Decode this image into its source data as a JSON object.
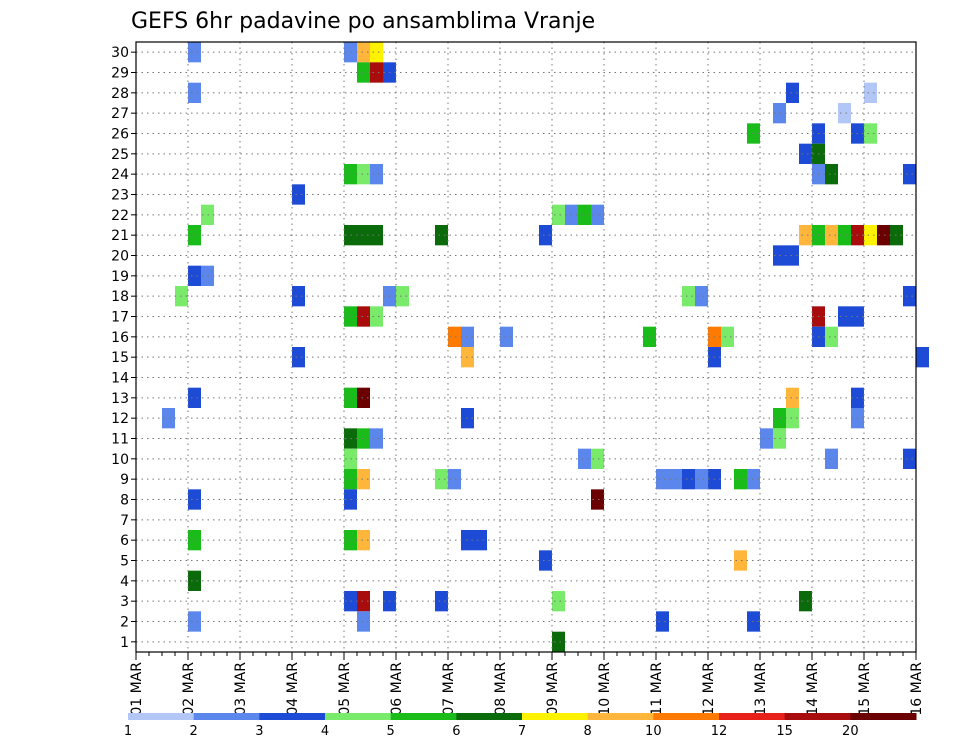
{
  "chart_data": {
    "type": "heatmap",
    "title": "GEFS 6hr padavine po ansamblima Vranje",
    "x_start": "01 MAR",
    "x_end": "16 MAR",
    "x_ticks": [
      "01 MAR",
      "02 MAR",
      "03 MAR",
      "04 MAR",
      "05 MAR",
      "06 MAR",
      "07 MAR",
      "08 MAR",
      "09 MAR",
      "10 MAR",
      "11 MAR",
      "12 MAR",
      "13 MAR",
      "14 MAR",
      "15 MAR",
      "16 MAR"
    ],
    "x_step_hours": 6,
    "y_ticks": [
      1,
      2,
      3,
      4,
      5,
      6,
      7,
      8,
      9,
      10,
      11,
      12,
      13,
      14,
      15,
      16,
      17,
      18,
      19,
      20,
      21,
      22,
      23,
      24,
      25,
      26,
      27,
      28,
      29,
      30
    ],
    "grid": "dotted",
    "legend": "bottom colorbar",
    "levels": [
      "1",
      "2",
      "3",
      "4",
      "5",
      "6",
      "7",
      "8",
      "10",
      "12",
      "15",
      "20"
    ],
    "level_colors": [
      "#b3c7f7",
      "#5b87ec",
      "#1d4bd6",
      "#79ea6a",
      "#19bc19",
      "#0b6b0b",
      "#fff200",
      "#ffb63a",
      "#ff7b00",
      "#e8201a",
      "#a80c0c",
      "#6b0000"
    ],
    "cells": [
      [
        "02 MAR 00Z",
        30,
        2
      ],
      [
        "05 MAR 00Z",
        30,
        2
      ],
      [
        "05 MAR 06Z",
        30,
        8
      ],
      [
        "05 MAR 12Z",
        30,
        7
      ],
      [
        "05 MAR 06Z",
        29,
        5
      ],
      [
        "05 MAR 12Z",
        29,
        15
      ],
      [
        "05 MAR 18Z",
        29,
        3
      ],
      [
        "02 MAR 00Z",
        28,
        2
      ],
      [
        "13 MAR 12Z",
        28,
        3
      ],
      [
        "15 MAR 00Z",
        28,
        1
      ],
      [
        "13 MAR 06Z",
        27,
        2
      ],
      [
        "14 MAR 12Z",
        27,
        1
      ],
      [
        "12 MAR 18Z",
        26,
        5
      ],
      [
        "14 MAR 00Z",
        26,
        3
      ],
      [
        "14 MAR 18Z",
        26,
        3
      ],
      [
        "15 MAR 00Z",
        26,
        4
      ],
      [
        "13 MAR 18Z",
        25,
        3
      ],
      [
        "14 MAR 00Z",
        25,
        6
      ],
      [
        "05 MAR 00Z",
        24,
        5
      ],
      [
        "05 MAR 06Z",
        24,
        4
      ],
      [
        "05 MAR 12Z",
        24,
        2
      ],
      [
        "14 MAR 00Z",
        24,
        2
      ],
      [
        "14 MAR 06Z",
        24,
        6
      ],
      [
        "15 MAR 18Z",
        24,
        3
      ],
      [
        "04 MAR 00Z",
        23,
        3
      ],
      [
        "02 MAR 06Z",
        22,
        4
      ],
      [
        "09 MAR 00Z",
        22,
        4
      ],
      [
        "09 MAR 06Z",
        22,
        2
      ],
      [
        "09 MAR 12Z",
        22,
        5
      ],
      [
        "09 MAR 18Z",
        22,
        2
      ],
      [
        "02 MAR 00Z",
        21,
        5
      ],
      [
        "05 MAR 00Z",
        21,
        6
      ],
      [
        "05 MAR 06Z",
        21,
        6
      ],
      [
        "05 MAR 12Z",
        21,
        6
      ],
      [
        "06 MAR 18Z",
        21,
        6
      ],
      [
        "08 MAR 18Z",
        21,
        3
      ],
      [
        "13 MAR 18Z",
        21,
        8
      ],
      [
        "14 MAR 00Z",
        21,
        5
      ],
      [
        "14 MAR 06Z",
        21,
        8
      ],
      [
        "14 MAR 12Z",
        21,
        5
      ],
      [
        "14 MAR 18Z",
        21,
        15
      ],
      [
        "15 MAR 00Z",
        21,
        7
      ],
      [
        "15 MAR 06Z",
        21,
        20
      ],
      [
        "15 MAR 12Z",
        21,
        6
      ],
      [
        "13 MAR 06Z",
        20,
        3
      ],
      [
        "13 MAR 12Z",
        20,
        3
      ],
      [
        "02 MAR 00Z",
        19,
        3
      ],
      [
        "02 MAR 06Z",
        19,
        2
      ],
      [
        "01 MAR 18Z",
        18,
        4
      ],
      [
        "04 MAR 00Z",
        18,
        3
      ],
      [
        "05 MAR 18Z",
        18,
        2
      ],
      [
        "06 MAR 00Z",
        18,
        4
      ],
      [
        "11 MAR 12Z",
        18,
        4
      ],
      [
        "11 MAR 18Z",
        18,
        2
      ],
      [
        "15 MAR 18Z",
        18,
        3
      ],
      [
        "05 MAR 00Z",
        17,
        5
      ],
      [
        "05 MAR 06Z",
        17,
        15
      ],
      [
        "05 MAR 12Z",
        17,
        4
      ],
      [
        "14 MAR 00Z",
        17,
        15
      ],
      [
        "14 MAR 12Z",
        17,
        3
      ],
      [
        "14 MAR 18Z",
        17,
        3
      ],
      [
        "07 MAR 00Z",
        16,
        10
      ],
      [
        "07 MAR 06Z",
        16,
        2
      ],
      [
        "08 MAR 00Z",
        16,
        2
      ],
      [
        "10 MAR 18Z",
        16,
        5
      ],
      [
        "12 MAR 00Z",
        16,
        10
      ],
      [
        "12 MAR 06Z",
        16,
        4
      ],
      [
        "14 MAR 00Z",
        16,
        3
      ],
      [
        "14 MAR 06Z",
        16,
        4
      ],
      [
        "04 MAR 00Z",
        15,
        3
      ],
      [
        "07 MAR 06Z",
        15,
        8
      ],
      [
        "12 MAR 00Z",
        15,
        3
      ],
      [
        "16 MAR 00Z",
        15,
        3
      ],
      [
        "05 MAR 00Z",
        13,
        5
      ],
      [
        "05 MAR 06Z",
        13,
        20
      ],
      [
        "02 MAR 00Z",
        13,
        3
      ],
      [
        "13 MAR 12Z",
        13,
        8
      ],
      [
        "14 MAR 18Z",
        13,
        3
      ],
      [
        "01 MAR 12Z",
        12,
        2
      ],
      [
        "07 MAR 06Z",
        12,
        3
      ],
      [
        "13 MAR 06Z",
        12,
        5
      ],
      [
        "13 MAR 12Z",
        12,
        4
      ],
      [
        "14 MAR 18Z",
        12,
        2
      ],
      [
        "05 MAR 00Z",
        11,
        6
      ],
      [
        "05 MAR 06Z",
        11,
        5
      ],
      [
        "05 MAR 12Z",
        11,
        2
      ],
      [
        "13 MAR 00Z",
        11,
        2
      ],
      [
        "13 MAR 06Z",
        11,
        4
      ],
      [
        "05 MAR 00Z",
        10,
        4
      ],
      [
        "09 MAR 12Z",
        10,
        2
      ],
      [
        "09 MAR 18Z",
        10,
        4
      ],
      [
        "14 MAR 06Z",
        10,
        2
      ],
      [
        "15 MAR 18Z",
        10,
        3
      ],
      [
        "05 MAR 00Z",
        9,
        5
      ],
      [
        "05 MAR 06Z",
        9,
        8
      ],
      [
        "06 MAR 18Z",
        9,
        4
      ],
      [
        "07 MAR 00Z",
        9,
        2
      ],
      [
        "11 MAR 00Z",
        9,
        2
      ],
      [
        "11 MAR 06Z",
        9,
        2
      ],
      [
        "11 MAR 12Z",
        9,
        3
      ],
      [
        "11 MAR 18Z",
        9,
        2
      ],
      [
        "12 MAR 00Z",
        9,
        3
      ],
      [
        "12 MAR 12Z",
        9,
        5
      ],
      [
        "12 MAR 18Z",
        9,
        2
      ],
      [
        "02 MAR 00Z",
        8,
        3
      ],
      [
        "05 MAR 00Z",
        8,
        3
      ],
      [
        "09 MAR 18Z",
        8,
        20
      ],
      [
        "05 MAR 00Z",
        6,
        5
      ],
      [
        "05 MAR 06Z",
        6,
        8
      ],
      [
        "07 MAR 06Z",
        6,
        3
      ],
      [
        "07 MAR 12Z",
        6,
        3
      ],
      [
        "02 MAR 00Z",
        6,
        5
      ],
      [
        "08 MAR 18Z",
        5,
        3
      ],
      [
        "12 MAR 12Z",
        5,
        8
      ],
      [
        "02 MAR 00Z",
        4,
        6
      ],
      [
        "05 MAR 00Z",
        3,
        3
      ],
      [
        "05 MAR 06Z",
        3,
        15
      ],
      [
        "05 MAR 18Z",
        3,
        3
      ],
      [
        "06 MAR 18Z",
        3,
        3
      ],
      [
        "09 MAR 00Z",
        3,
        4
      ],
      [
        "13 MAR 18Z",
        3,
        6
      ],
      [
        "02 MAR 00Z",
        2,
        2
      ],
      [
        "05 MAR 06Z",
        2,
        2
      ],
      [
        "11 MAR 00Z",
        2,
        3
      ],
      [
        "12 MAR 18Z",
        2,
        3
      ],
      [
        "09 MAR 00Z",
        1,
        6
      ]
    ]
  }
}
